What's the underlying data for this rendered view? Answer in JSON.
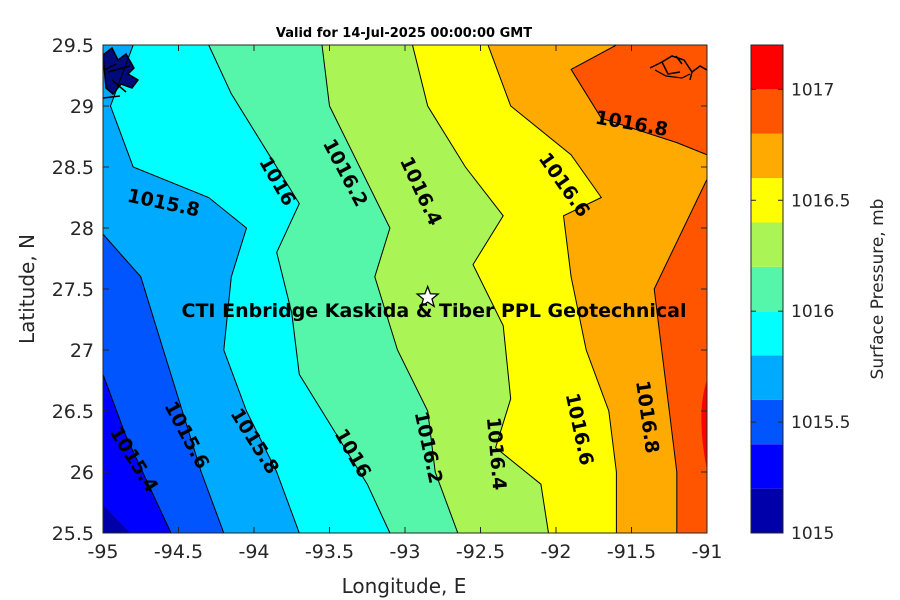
{
  "chart_data": {
    "type": "contour",
    "title": "Valid for 14-Jul-2025 00:00:00 GMT",
    "xlabel": "Longitude, E",
    "ylabel": "Latitude, N",
    "xlim": [
      -95,
      -91
    ],
    "ylim": [
      25.5,
      29.5
    ],
    "xticks": [
      "-95",
      "-94.5",
      "-94",
      "-93.5",
      "-93",
      "-92.5",
      "-92",
      "-91.5",
      "-91"
    ],
    "yticks": [
      "25.5",
      "26",
      "26.5",
      "27",
      "27.5",
      "28",
      "28.5",
      "29",
      "29.5"
    ],
    "colorbar": {
      "label": "Surface Pressure, mb",
      "range": [
        1015,
        1017.2
      ],
      "ticks": [
        "1015",
        "1015.5",
        "1016",
        "1016.5",
        "1017"
      ],
      "levels": [
        1015,
        1015.2,
        1015.4,
        1015.6,
        1015.8,
        1016,
        1016.2,
        1016.4,
        1016.6,
        1016.8,
        1017,
        1017.2
      ],
      "colors": [
        "#0000aa",
        "#0000ff",
        "#0055ff",
        "#00aaff",
        "#00ffff",
        "#55f5aa",
        "#aaf555",
        "#ffff00",
        "#ffaa00",
        "#ff5500",
        "#ff0000"
      ]
    },
    "contour_lines": [
      {
        "level": "1015.4",
        "points": [
          [
            -95,
            26.8
          ],
          [
            -94.85,
            26.3
          ],
          [
            -94.7,
            25.9
          ],
          [
            -94.55,
            25.5
          ]
        ]
      },
      {
        "level": "1015.6",
        "points": [
          [
            -95,
            27.95
          ],
          [
            -94.75,
            27.6
          ],
          [
            -94.65,
            27.2
          ],
          [
            -94.5,
            26.6
          ],
          [
            -94.35,
            26
          ],
          [
            -94.2,
            25.5
          ]
        ]
      },
      {
        "level": "1015.8",
        "points": [
          [
            -94.8,
            29.5
          ],
          [
            -94.95,
            29.0
          ],
          [
            -94.8,
            28.5
          ],
          [
            -94.3,
            28.25
          ],
          [
            -94.05,
            28
          ],
          [
            -94.15,
            27.6
          ],
          [
            -94.2,
            27.0
          ],
          [
            -94.05,
            26.5
          ],
          [
            -93.85,
            26.0
          ],
          [
            -93.7,
            25.5
          ]
        ]
      },
      {
        "level": "1016",
        "points": [
          [
            -94.3,
            29.5
          ],
          [
            -94.15,
            29.1
          ],
          [
            -93.9,
            28.6
          ],
          [
            -93.7,
            28.2
          ],
          [
            -93.85,
            27.8
          ],
          [
            -93.75,
            27.3
          ],
          [
            -93.7,
            26.8
          ],
          [
            -93.45,
            26.3
          ],
          [
            -93.25,
            25.9
          ],
          [
            -93.1,
            25.5
          ]
        ]
      },
      {
        "level": "1016.2",
        "points": [
          [
            -93.55,
            29.5
          ],
          [
            -93.5,
            29.0
          ],
          [
            -93.3,
            28.5
          ],
          [
            -93.1,
            28.0
          ],
          [
            -93.2,
            27.6
          ],
          [
            -93.05,
            27.0
          ],
          [
            -92.85,
            26.5
          ],
          [
            -92.8,
            26.0
          ],
          [
            -92.65,
            25.5
          ]
        ]
      },
      {
        "level": "1016.4",
        "points": [
          [
            -92.95,
            29.5
          ],
          [
            -92.85,
            29.0
          ],
          [
            -92.6,
            28.5
          ],
          [
            -92.35,
            28.1
          ],
          [
            -92.55,
            27.7
          ],
          [
            -92.35,
            27.2
          ],
          [
            -92.3,
            26.6
          ],
          [
            -92.4,
            26.2
          ],
          [
            -92.1,
            25.9
          ],
          [
            -92.05,
            25.5
          ]
        ]
      },
      {
        "level": "1016.6",
        "points": [
          [
            -92.45,
            29.5
          ],
          [
            -92.3,
            29.0
          ],
          [
            -91.9,
            28.6
          ],
          [
            -91.7,
            28.25
          ],
          [
            -91.95,
            28.1
          ],
          [
            -91.9,
            27.6
          ],
          [
            -91.8,
            27.0
          ],
          [
            -91.65,
            26.5
          ],
          [
            -91.6,
            26.0
          ],
          [
            -91.6,
            25.5
          ]
        ]
      },
      {
        "level": "1016.8",
        "points": [
          [
            -91.6,
            29.5
          ],
          [
            -91.9,
            29.3
          ],
          [
            -91.7,
            28.9
          ],
          [
            -91.2,
            28.7
          ],
          [
            -91.0,
            28.6
          ]
        ]
      },
      {
        "level": "1016.8",
        "points": [
          [
            -91.0,
            28.4
          ],
          [
            -91.35,
            27.5
          ],
          [
            -91.3,
            27.0
          ],
          [
            -91.25,
            26.5
          ],
          [
            -91.2,
            26.0
          ],
          [
            -91.2,
            25.5
          ]
        ]
      }
    ],
    "contour_labels": [
      {
        "text": "1015.4",
        "x": -94.8,
        "y": 26.1,
        "angle": 58
      },
      {
        "text": "1015.6",
        "x": -94.45,
        "y": 26.3,
        "angle": 62
      },
      {
        "text": "1015.8",
        "x": -94.6,
        "y": 28.2,
        "angle": 12
      },
      {
        "text": "1015.8",
        "x": -94.0,
        "y": 26.25,
        "angle": 58
      },
      {
        "text": "1016",
        "x": -93.85,
        "y": 28.38,
        "angle": 60
      },
      {
        "text": "1016",
        "x": -93.35,
        "y": 26.15,
        "angle": 60
      },
      {
        "text": "1016.2",
        "x": -93.4,
        "y": 28.45,
        "angle": 62
      },
      {
        "text": "1016.2",
        "x": -92.85,
        "y": 26.2,
        "angle": 78
      },
      {
        "text": "1016.4",
        "x": -92.9,
        "y": 28.3,
        "angle": 65
      },
      {
        "text": "1016.4",
        "x": -92.4,
        "y": 26.15,
        "angle": 85
      },
      {
        "text": "1016.6",
        "x": -91.95,
        "y": 28.35,
        "angle": 55
      },
      {
        "text": "1016.6",
        "x": -91.85,
        "y": 26.35,
        "angle": 78
      },
      {
        "text": "1016.8",
        "x": -91.5,
        "y": 28.85,
        "angle": 10
      },
      {
        "text": "1016.8",
        "x": -91.4,
        "y": 26.45,
        "angle": 82
      }
    ],
    "marker": {
      "shape": "star",
      "x": -92.85,
      "y": 27.43
    },
    "annotation": {
      "text": "CTI Enbridge  Kaskida & Tiber PPL Geotechnical",
      "x": -93.0,
      "y": 27.32
    }
  }
}
